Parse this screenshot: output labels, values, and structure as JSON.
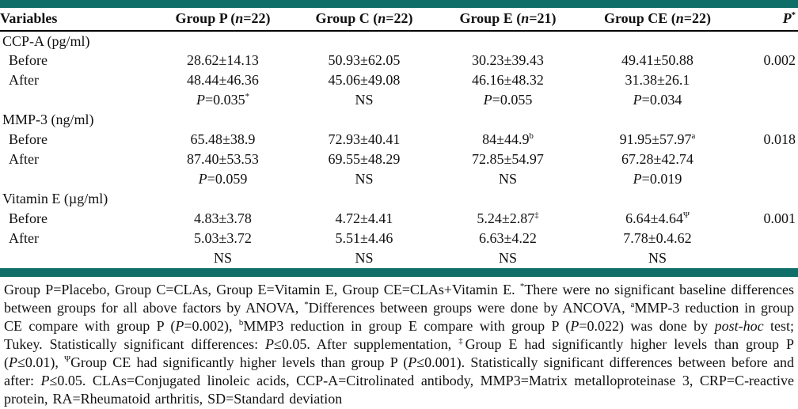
{
  "colors": {
    "accent_bar": "#106e68"
  },
  "table": {
    "header": [
      "Variables",
      [
        {
          "t": "Group P ("
        },
        {
          "i": "n"
        },
        {
          "t": "=22)"
        }
      ],
      [
        {
          "t": "Group C ("
        },
        {
          "i": "n"
        },
        {
          "t": "=22)"
        }
      ],
      [
        {
          "t": "Group E ("
        },
        {
          "i": "n"
        },
        {
          "t": "=21)"
        }
      ],
      [
        {
          "t": "Group CE ("
        },
        {
          "i": "n"
        },
        {
          "t": "=22)"
        }
      ],
      [
        {
          "i": "P"
        },
        {
          "sup": "*"
        }
      ]
    ],
    "rows": [
      {
        "type": "section",
        "cells": [
          "CCP-A (pg/ml)",
          "",
          "",
          "",
          "",
          ""
        ]
      },
      {
        "type": "data",
        "cells": [
          "Before",
          "28.62±14.13",
          "50.93±62.05",
          "30.23±39.43",
          "49.41±50.88",
          "0.002"
        ]
      },
      {
        "type": "data",
        "cells": [
          "After",
          "48.44±46.36",
          "45.06±49.08",
          "46.16±48.32",
          "31.38±26.1",
          ""
        ]
      },
      {
        "type": "stat",
        "cells": [
          "",
          [
            {
              "i": "P"
            },
            {
              "t": "=0.035"
            },
            {
              "sup": "*"
            }
          ],
          "NS",
          [
            {
              "i": "P"
            },
            {
              "t": "=0.055"
            }
          ],
          [
            {
              "i": "P"
            },
            {
              "t": "=0.034"
            }
          ],
          ""
        ]
      },
      {
        "type": "section",
        "cells": [
          "MMP-3 (ng/ml)",
          "",
          "",
          "",
          "",
          ""
        ]
      },
      {
        "type": "data",
        "cells": [
          "Before",
          "65.48±38.9",
          "72.93±40.41",
          [
            {
              "t": "84±44.9"
            },
            {
              "sup": "b"
            }
          ],
          [
            {
              "t": "91.95±57.97"
            },
            {
              "sup": "a"
            }
          ],
          "0.018"
        ]
      },
      {
        "type": "data",
        "cells": [
          "After",
          "87.40±53.53",
          "69.55±48.29",
          "72.85±54.97",
          "67.28±42.74",
          ""
        ]
      },
      {
        "type": "stat",
        "cells": [
          "",
          [
            {
              "i": "P"
            },
            {
              "t": "=0.059"
            }
          ],
          "NS",
          "NS",
          [
            {
              "i": "P"
            },
            {
              "t": "=0.019"
            }
          ],
          ""
        ]
      },
      {
        "type": "section",
        "cells": [
          "Vitamin E (µg/ml)",
          "",
          "",
          "",
          "",
          ""
        ]
      },
      {
        "type": "data",
        "cells": [
          "Before",
          "4.83±3.78",
          "4.72±4.41",
          [
            {
              "t": "5.24±2.87"
            },
            {
              "sup": "‡"
            }
          ],
          [
            {
              "t": "6.64±4.64"
            },
            {
              "sup": "Ψ"
            }
          ],
          "0.001"
        ]
      },
      {
        "type": "data",
        "cells": [
          "After",
          "5.03±3.72",
          "5.51±4.46",
          "6.63±4.22",
          "7.78±0.4.62",
          ""
        ]
      },
      {
        "type": "stat",
        "cells": [
          "",
          "NS",
          "NS",
          "NS",
          "NS",
          ""
        ]
      }
    ]
  },
  "footnote": {
    "segments": [
      {
        "t": "Group P=Placebo, Group C=CLAs, Group E=Vitamin E, Group CE=CLAs+Vitamin E. "
      },
      {
        "sup": "*"
      },
      {
        "t": "There were no significant baseline differences between groups for all above factors by ANOVA, "
      },
      {
        "sup": "*"
      },
      {
        "t": "Differences between groups were done by ANCOVA, "
      },
      {
        "sup": "a"
      },
      {
        "t": "MMP-3 reduction in group CE compare with group P ("
      },
      {
        "i": "P"
      },
      {
        "t": "=0.002), "
      },
      {
        "sup": "b"
      },
      {
        "t": "MMP3 reduction in group E compare with group P ("
      },
      {
        "i": "P"
      },
      {
        "t": "=0.022) was done by "
      },
      {
        "i": "post-hoc"
      },
      {
        "t": " test; Tukey. Statistically significant differences: "
      },
      {
        "i": "P"
      },
      {
        "t": "≤0.05. After supplementation, "
      },
      {
        "sup": "‡"
      },
      {
        "t": "Group E had significantly higher levels than group P ("
      },
      {
        "i": "P"
      },
      {
        "t": "≤0.01), "
      },
      {
        "sup": "Ψ"
      },
      {
        "t": "Group CE had significantly higher levels than group P ("
      },
      {
        "i": "P"
      },
      {
        "t": "≤0.001). Statistically significant differences between before and after: "
      },
      {
        "i": "P"
      },
      {
        "t": "≤0.05. CLAs=Conjugated linoleic acids, CCP-A=Citrolinated antibody, MMP3=Matrix metalloproteinase 3, CRP=C-reactive protein, RA=Rheumatoid arthritis, SD=Standard deviation"
      }
    ]
  }
}
